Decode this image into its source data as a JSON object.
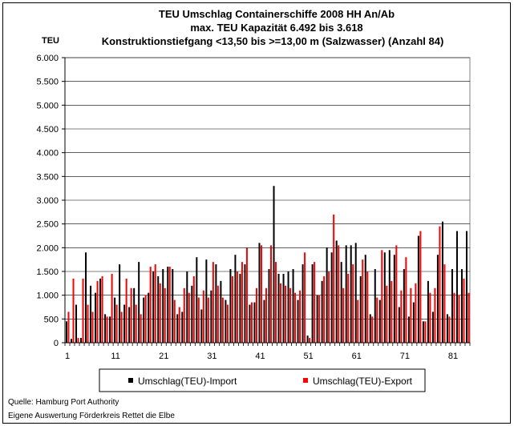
{
  "chart_data": {
    "type": "bar",
    "title": [
      "TEU Umschlag Containerschiffe 2008 HH An/Ab",
      "max. TEU Kapazität  6.492 bis 3.618",
      "Konstruktionstiefgang <13,50 bis >=13,00 m (Salzwasser)  (Anzahl 84)"
    ],
    "ylabel": "TEU",
    "ylim": [
      0,
      6000
    ],
    "yticks": [
      0,
      500,
      1000,
      1500,
      2000,
      2500,
      3000,
      3500,
      4000,
      4500,
      5000,
      5500,
      6000
    ],
    "ytick_labels": [
      "0",
      "500",
      "1.000",
      "1.500",
      "2.000",
      "2.500",
      "3.000",
      "3.500",
      "4.000",
      "4.500",
      "5.000",
      "5.500",
      "6.000"
    ],
    "xtick_labels": [
      "1",
      "11",
      "21",
      "31",
      "41",
      "51",
      "61",
      "71",
      "81"
    ],
    "xtick_values": [
      1,
      11,
      21,
      31,
      41,
      51,
      61,
      71,
      81
    ],
    "x": [
      1,
      2,
      3,
      4,
      5,
      6,
      7,
      8,
      9,
      10,
      11,
      12,
      13,
      14,
      15,
      16,
      17,
      18,
      19,
      20,
      21,
      22,
      23,
      24,
      25,
      26,
      27,
      28,
      29,
      30,
      31,
      32,
      33,
      34,
      35,
      36,
      37,
      38,
      39,
      40,
      41,
      42,
      43,
      44,
      45,
      46,
      47,
      48,
      49,
      50,
      51,
      52,
      53,
      54,
      55,
      56,
      57,
      58,
      59,
      60,
      61,
      62,
      63,
      64,
      65,
      66,
      67,
      68,
      69,
      70,
      71,
      72,
      73,
      74,
      75,
      76,
      77,
      78,
      79,
      80,
      81,
      82,
      83,
      84
    ],
    "legend_position": "bottom",
    "grid": true,
    "series": [
      {
        "name": "Umschlag(TEU)-Import",
        "color": "#000000",
        "values": [
          450,
          80,
          800,
          100,
          1900,
          1200,
          1050,
          1350,
          600,
          550,
          950,
          1650,
          800,
          750,
          1150,
          1700,
          950,
          1050,
          1500,
          1400,
          1550,
          1600,
          1550,
          600,
          650,
          1500,
          1200,
          1800,
          700,
          1750,
          1100,
          1650,
          1300,
          900,
          1550,
          1850,
          1450,
          1650,
          800,
          850,
          2100,
          900,
          1550,
          3300,
          1450,
          1450,
          1500,
          1550,
          900,
          1650,
          150,
          1650,
          1000,
          1300,
          2000,
          1900,
          2150,
          1700,
          2050,
          2050,
          2100,
          1400,
          1850,
          600,
          1550,
          900,
          1900,
          1950,
          1850,
          750,
          1550,
          550,
          850,
          2250,
          450,
          1300,
          650,
          1850,
          2550,
          600,
          1550,
          2350,
          1550,
          2350
        ]
      },
      {
        "name": "Umschlag(TEU)-Export",
        "color": "#ff0000",
        "values": [
          650,
          1350,
          100,
          1350,
          800,
          650,
          1300,
          1400,
          550,
          1450,
          800,
          650,
          1350,
          1150,
          800,
          600,
          1000,
          1600,
          1650,
          1250,
          1150,
          1600,
          900,
          750,
          1150,
          1050,
          1400,
          950,
          1100,
          950,
          1700,
          1200,
          950,
          800,
          1400,
          1500,
          1700,
          2000,
          850,
          1150,
          2050,
          1150,
          2050,
          1700,
          1250,
          1200,
          1150,
          1050,
          1100,
          1900,
          100,
          1700,
          1000,
          1400,
          1500,
          2700,
          2050,
          1150,
          1450,
          1650,
          900,
          1750,
          1500,
          550,
          950,
          1950,
          1200,
          1300,
          2050,
          1100,
          1800,
          1150,
          1250,
          2350,
          450,
          1050,
          1150,
          2450,
          1650,
          550,
          1050,
          1000,
          1350,
          1050
        ]
      }
    ],
    "source": [
      "Quelle: Hamburg Port Authority",
      "Eigene Auswertung Förderkreis Rettet die Elbe"
    ]
  }
}
